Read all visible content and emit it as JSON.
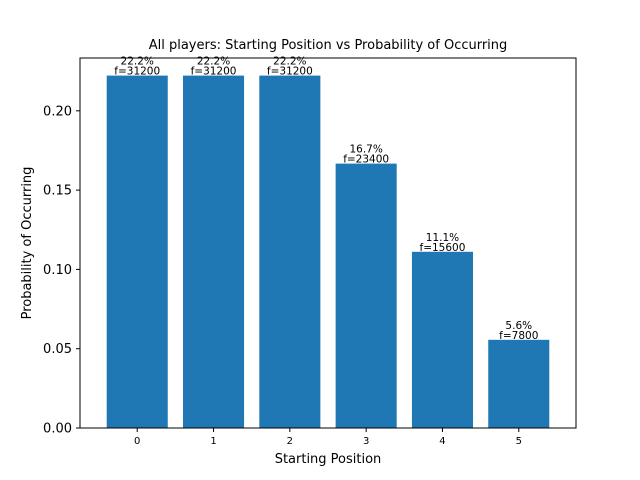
{
  "chart_data": {
    "type": "bar",
    "title": "All players: Starting Position vs Probability of Occurring",
    "xlabel": "Starting Position",
    "ylabel": "Probability of Occurring",
    "categories": [
      "0",
      "1",
      "2",
      "3",
      "4",
      "5"
    ],
    "values": [
      0.2222,
      0.2222,
      0.2222,
      0.1667,
      0.1111,
      0.0556
    ],
    "bar_labels": [
      {
        "pct": "22.2%",
        "freq": "f=31200"
      },
      {
        "pct": "22.2%",
        "freq": "f=31200"
      },
      {
        "pct": "22.2%",
        "freq": "f=31200"
      },
      {
        "pct": "16.7%",
        "freq": "f=23400"
      },
      {
        "pct": "11.1%",
        "freq": "f=15600"
      },
      {
        "pct": "5.6%",
        "freq": "f=7800"
      }
    ],
    "ylim": [
      0,
      0.2333
    ],
    "yticks": [
      "0.00",
      "0.05",
      "0.10",
      "0.15",
      "0.20"
    ],
    "ytick_values": [
      0,
      0.05,
      0.1,
      0.15,
      0.2
    ],
    "grid": false,
    "legend": "none",
    "bar_color": "#1f77b4"
  }
}
